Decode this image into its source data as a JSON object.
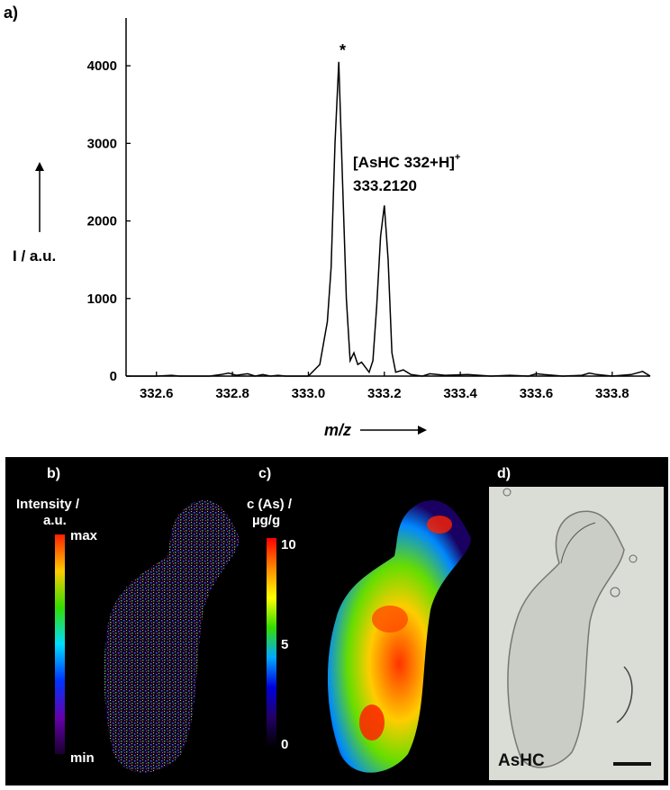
{
  "panel_a": {
    "label": "a)",
    "y_arrow_label": "I / a.u.",
    "x_axis_label": "m/z",
    "peak_marker": "*",
    "annotation_line1": "[AsHC 332+H]",
    "annotation_sup": "+",
    "annotation_line2": "333.2120"
  },
  "chart_data": {
    "type": "line",
    "title": "",
    "xlabel": "m/z",
    "ylabel": "I / a.u.",
    "xlim": [
      332.52,
      333.9
    ],
    "ylim": [
      0,
      4500
    ],
    "x_ticks": [
      "332.6",
      "332.8",
      "333.0",
      "333.2",
      "333.4",
      "333.6",
      "333.8"
    ],
    "y_ticks": [
      "0",
      "1000",
      "2000",
      "3000",
      "4000"
    ],
    "grid": false,
    "series": [
      {
        "x": [
          332.52,
          332.6,
          332.64,
          332.66,
          332.68,
          332.74,
          332.77,
          332.79,
          332.81,
          332.84,
          332.86,
          332.88,
          332.9,
          332.92,
          332.94,
          332.97,
          333.0,
          333.03,
          333.05,
          333.06,
          333.07,
          333.08,
          333.09,
          333.1,
          333.11,
          333.12,
          333.13,
          333.14,
          333.16,
          333.17,
          333.18,
          333.19,
          333.2,
          333.21,
          333.22,
          333.23,
          333.25,
          333.27,
          333.3,
          333.32,
          333.36,
          333.42,
          333.48,
          333.53,
          333.58,
          333.6,
          333.62,
          333.67,
          333.72,
          333.74,
          333.76,
          333.8,
          333.85,
          333.88,
          333.9
        ],
        "y": [
          0,
          0,
          10,
          0,
          0,
          0,
          20,
          40,
          10,
          30,
          0,
          20,
          0,
          10,
          0,
          0,
          0,
          150,
          700,
          1400,
          3000,
          4050,
          2500,
          1000,
          200,
          300,
          150,
          180,
          50,
          200,
          900,
          1800,
          2200,
          1500,
          300,
          50,
          80,
          20,
          0,
          30,
          10,
          20,
          0,
          10,
          0,
          30,
          20,
          0,
          10,
          40,
          20,
          0,
          20,
          60,
          0
        ]
      }
    ]
  },
  "panel_b": {
    "label": "b)",
    "title_line1": "Intensity /",
    "title_line2": "a.u.",
    "max_label": "max",
    "min_label": "min"
  },
  "panel_c": {
    "label": "c)",
    "title_line1": "c (As) /",
    "title_line2": "µg/g",
    "tick_top": "10",
    "tick_mid": "5",
    "tick_bottom": "0"
  },
  "panel_d": {
    "label": "d)",
    "caption": "AsHC"
  },
  "colors": {
    "colorbar_b": [
      "#ff2000",
      "#ffcc00",
      "#33dd00",
      "#00ddff",
      "#0033ff",
      "#6600aa",
      "#1a0030"
    ],
    "colorbar_c": [
      "#ff0000",
      "#ff8800",
      "#ffff00",
      "#33dd00",
      "#00aaff",
      "#0000dd",
      "#220066",
      "#000000"
    ]
  }
}
